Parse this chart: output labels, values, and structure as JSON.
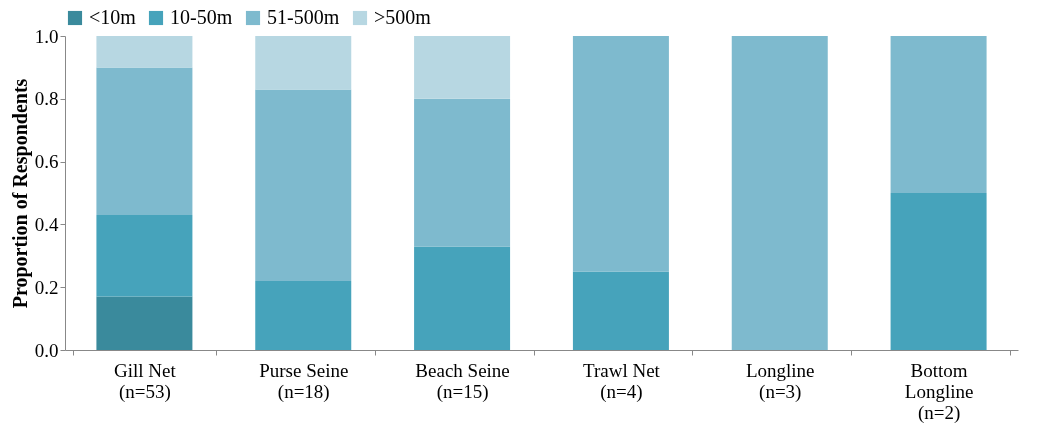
{
  "chart_data": {
    "type": "bar",
    "stacked": true,
    "ylabel": "Proportion of Respondents",
    "categories": [
      "Gill Net\n(n=53)",
      "Purse Seine\n(n=18)",
      "Beach Seine\n(n=15)",
      "Trawl Net\n(n=4)",
      "Longline\n(n=3)",
      "Bottom\nLongline\n(n=2)"
    ],
    "series": [
      {
        "name": "<10m",
        "color": "#3a8a9c",
        "values": [
          0.17,
          0,
          0,
          0,
          0,
          0
        ]
      },
      {
        "name": "10-50m",
        "color": "#46a3bb",
        "values": [
          0.26,
          0.22,
          0.33,
          0.25,
          0,
          0.5
        ]
      },
      {
        "name": "51-500m",
        "color": "#7ebace",
        "values": [
          0.47,
          0.61,
          0.47,
          0.75,
          1.0,
          0.5
        ]
      },
      {
        "name": ">500m",
        "color": "#b7d7e2",
        "values": [
          0.1,
          0.17,
          0.2,
          0,
          0,
          0
        ]
      }
    ],
    "ylim": [
      0,
      1.0
    ],
    "yticks": [
      {
        "value": 0,
        "label": "0.0"
      },
      {
        "value": 0.2,
        "label": "0.2"
      },
      {
        "value": 0.4,
        "label": "0.4"
      },
      {
        "value": 0.6,
        "label": "0.6"
      },
      {
        "value": 0.8,
        "label": "0.8"
      },
      {
        "value": 1.0,
        "label": "1.0"
      }
    ],
    "grid": false,
    "legend": "top"
  }
}
